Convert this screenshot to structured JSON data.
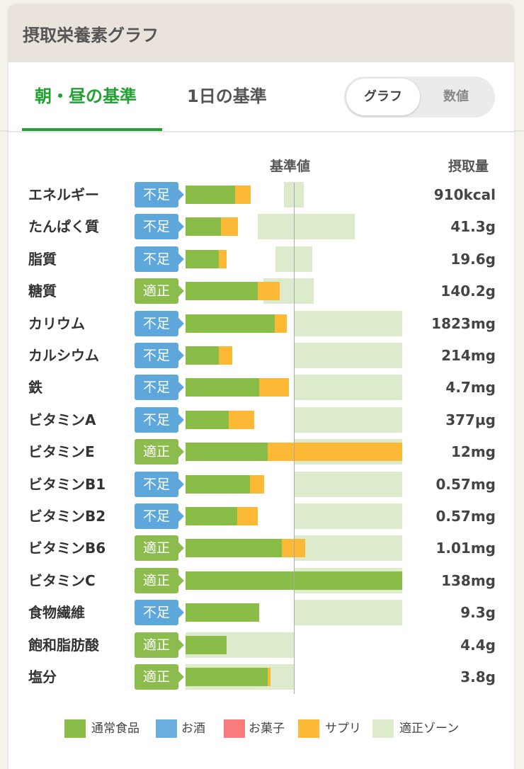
{
  "header": {
    "title": "摂取栄養素グラフ"
  },
  "tabs": [
    {
      "label": "朝・昼の基準",
      "active": true
    },
    {
      "label": "1日の基準",
      "active": false
    }
  ],
  "view_toggle": {
    "options": [
      "グラフ",
      "数値"
    ],
    "selected": "グラフ"
  },
  "columns": {
    "reference": "基準値",
    "intake": "摂取量"
  },
  "status_colors": {
    "不足": "#5da7db",
    "適正": "#8cbc4d"
  },
  "rows": [
    {
      "name": "エネルギー",
      "status": "不足",
      "value": "910kcal"
    },
    {
      "name": "たんぱく質",
      "status": "不足",
      "value": "41.3g"
    },
    {
      "name": "脂質",
      "status": "不足",
      "value": "19.6g"
    },
    {
      "name": "糖質",
      "status": "適正",
      "value": "140.2g"
    },
    {
      "name": "カリウム",
      "status": "不足",
      "value": "1823mg"
    },
    {
      "name": "カルシウム",
      "status": "不足",
      "value": "214mg"
    },
    {
      "name": "鉄",
      "status": "不足",
      "value": "4.7mg"
    },
    {
      "name": "ビタミンA",
      "status": "不足",
      "value": "377µg"
    },
    {
      "name": "ビタミンE",
      "status": "適正",
      "value": "12mg"
    },
    {
      "name": "ビタミンB1",
      "status": "不足",
      "value": "0.57mg"
    },
    {
      "name": "ビタミンB2",
      "status": "不足",
      "value": "0.57mg"
    },
    {
      "name": "ビタミンB6",
      "status": "適正",
      "value": "1.01mg"
    },
    {
      "name": "ビタミンC",
      "status": "適正",
      "value": "138mg"
    },
    {
      "name": "食物繊維",
      "status": "不足",
      "value": "9.3g"
    },
    {
      "name": "飽和脂肪酸",
      "status": "適正",
      "value": "4.4g"
    },
    {
      "name": "塩分",
      "status": "適正",
      "value": "3.8g"
    }
  ],
  "legend": [
    {
      "label": "通常食品",
      "color": "#8abd47"
    },
    {
      "label": "お酒",
      "color": "#6aaee0"
    },
    {
      "label": "お菓子",
      "color": "#f97b7b"
    },
    {
      "label": "サプリ",
      "color": "#fbb936"
    },
    {
      "label": "適正ゾーン",
      "color": "#dcebcb"
    }
  ]
}
